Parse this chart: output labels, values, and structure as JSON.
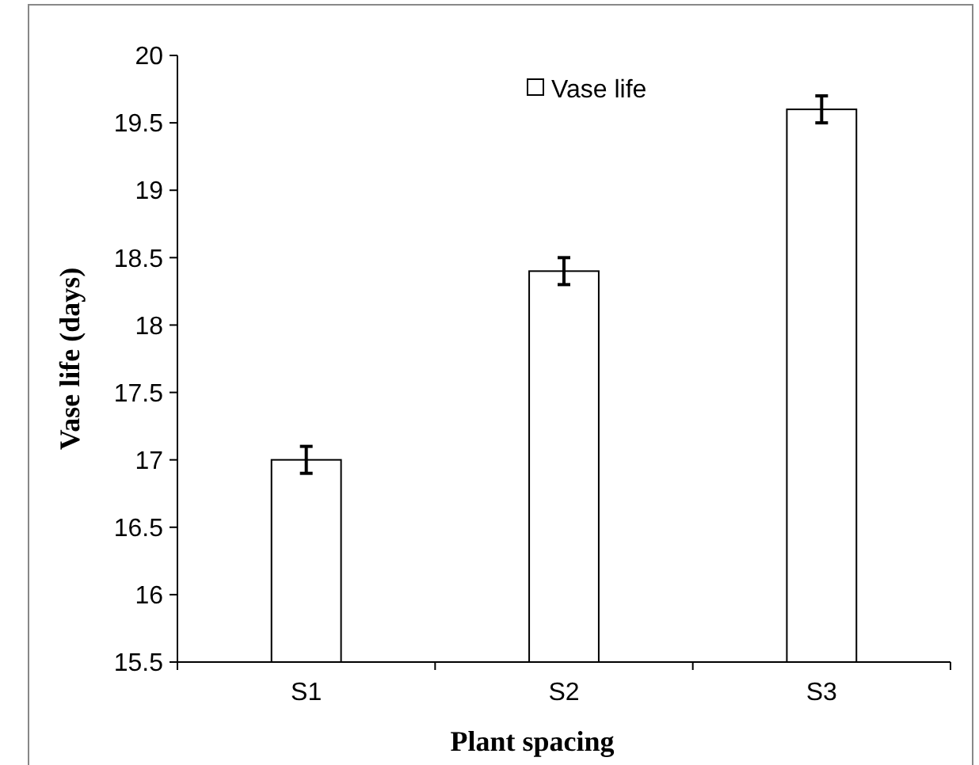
{
  "chart_data": {
    "type": "bar",
    "xlabel": "Plant spacing",
    "ylabel": "Vase life (days)",
    "categories": [
      "S1",
      "S2",
      "S3"
    ],
    "series": [
      {
        "name": "Vase life",
        "color": "#ffffff",
        "values": [
          17.0,
          18.4,
          19.6
        ],
        "errors": [
          0.1,
          0.1,
          0.1
        ]
      }
    ],
    "ylim": [
      15.5,
      20
    ],
    "yticks": [
      15.5,
      16,
      16.5,
      17,
      17.5,
      18,
      18.5,
      19,
      19.5,
      20
    ],
    "grid": false,
    "legend": "top"
  }
}
